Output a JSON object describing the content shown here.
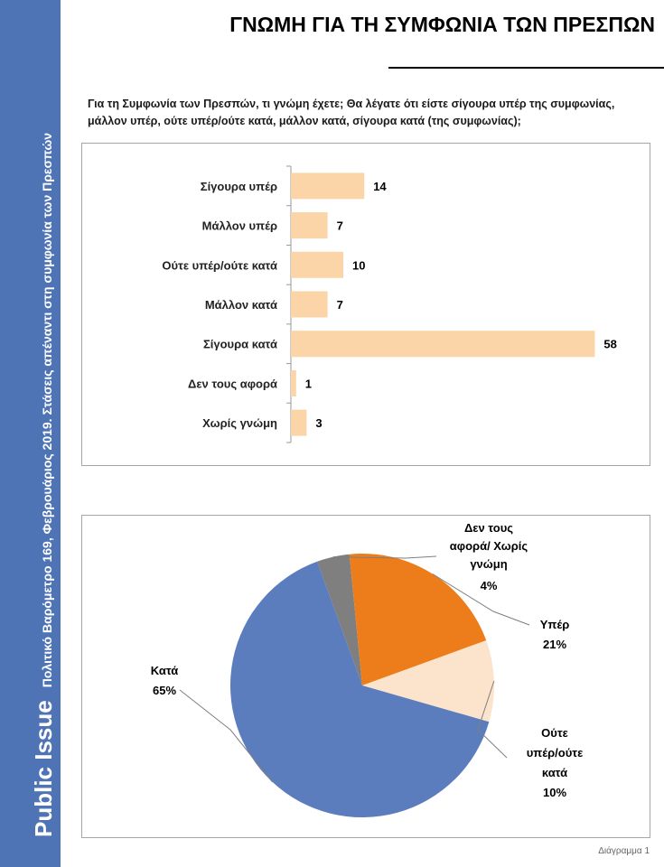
{
  "sidebar": {
    "brand": "Public Issue",
    "subtitle": "Πολιτικό Βαρόμετρο 169, Φεβρουάριος 2019. Στάσεις απέναντι στη συμφωνία των Πρεσπών"
  },
  "page_title": "ΓΝΩΜΗ ΓΙΑ ΤΗ ΣΥΜΦΩΝΙΑ ΤΩΝ ΠΡΕΣΠΩΝ",
  "question": "Για τη Συμφωνία των Πρεσπών, τι γνώμη έχετε; Θα λέγατε ότι είστε σίγουρα υπέρ της συμφωνίας, μάλλον υπέρ, ούτε υπέρ/ούτε κατά, μάλλον κατά, σίγουρα κατά (της συμφωνίας);",
  "footer_caption": "Διάγραμμα 1",
  "chart_data": [
    {
      "type": "bar",
      "orientation": "horizontal",
      "categories": [
        "Σίγουρα υπέρ",
        "Μάλλον υπέρ",
        "Ούτε υπέρ/ούτε κατά",
        "Μάλλον κατά",
        "Σίγουρα κατά",
        "Δεν τους αφορά",
        "Χωρίς γνώμη"
      ],
      "values": [
        14,
        7,
        10,
        7,
        58,
        1,
        3
      ],
      "data_labels": [
        "14",
        "7",
        "10",
        "7",
        "58",
        "1",
        "3"
      ],
      "xlim": [
        0,
        60
      ],
      "grid": false,
      "bar_color": "#fbd4a8",
      "axis_color": "#9a9a9a"
    },
    {
      "type": "pie",
      "slices": [
        {
          "label": "Δεν τους αφορά/ Χωρίς γνώμη",
          "value": 4,
          "value_label": "4%",
          "color": "#7f7f7f"
        },
        {
          "label": "Υπέρ",
          "value": 21,
          "value_label": "21%",
          "color": "#ed7d1a"
        },
        {
          "label": "Ούτε υπέρ/ούτε κατά",
          "value": 10,
          "value_label": "10%",
          "color": "#fce4cc"
        },
        {
          "label": "Κατά",
          "value": 65,
          "value_label": "65%",
          "color": "#5b7cbd"
        }
      ],
      "slice_order": "clockwise from about 11 o'clock",
      "label_style": "outside with leader lines"
    }
  ]
}
